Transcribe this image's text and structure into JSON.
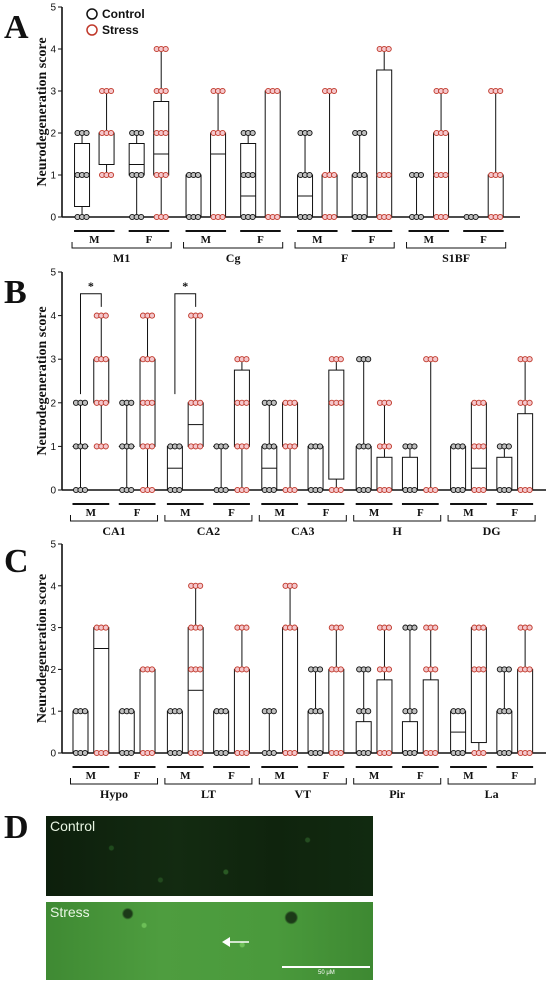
{
  "figure": {
    "panels": [
      {
        "letter": "A"
      },
      {
        "letter": "B"
      },
      {
        "letter": "C"
      },
      {
        "letter": "D"
      }
    ],
    "legend": [
      {
        "label": "Control",
        "color": "#111111"
      },
      {
        "label": "Stress",
        "color": "#c0392b"
      }
    ],
    "sex_labels": [
      "M",
      "F"
    ],
    "micrographs": {
      "control_label": "Control",
      "stress_label": "Stress",
      "scale_label": "50 μM"
    }
  },
  "chart_data": [
    {
      "type": "box",
      "panel": "A",
      "ylabel": "Neurodegeneration score",
      "ylim": [
        0,
        5
      ],
      "yticks": [
        0,
        1,
        2,
        3,
        4,
        5
      ],
      "series": [
        "Control",
        "Stress"
      ],
      "regions": [
        {
          "name": "M1",
          "groups": [
            {
              "sex": "M",
              "group": "Control",
              "min": 0,
              "q1": 0.25,
              "median": 1,
              "q3": 1.75,
              "max": 2
            },
            {
              "sex": "M",
              "group": "Stress",
              "min": 1,
              "q1": 1.25,
              "median": 2,
              "q3": 2,
              "max": 3
            },
            {
              "sex": "F",
              "group": "Control",
              "min": 0,
              "q1": 1,
              "median": 1.25,
              "q3": 1.75,
              "max": 2
            },
            {
              "sex": "F",
              "group": "Stress",
              "min": 0,
              "q1": 1,
              "median": 1.5,
              "q3": 2.75,
              "max": 4
            }
          ]
        },
        {
          "name": "Cg",
          "groups": [
            {
              "sex": "M",
              "group": "Control",
              "min": 0,
              "q1": 0,
              "median": 0,
              "q3": 1,
              "max": 1
            },
            {
              "sex": "M",
              "group": "Stress",
              "min": 0,
              "q1": 0,
              "median": 1.5,
              "q3": 2,
              "max": 3
            },
            {
              "sex": "F",
              "group": "Control",
              "min": 0,
              "q1": 0,
              "median": 0.5,
              "q3": 1.75,
              "max": 2
            },
            {
              "sex": "F",
              "group": "Stress",
              "min": 0,
              "q1": 0,
              "median": 3,
              "q3": 3,
              "max": 3
            }
          ]
        },
        {
          "name": "F",
          "groups": [
            {
              "sex": "M",
              "group": "Control",
              "min": 0,
              "q1": 0,
              "median": 0.5,
              "q3": 1,
              "max": 2
            },
            {
              "sex": "M",
              "group": "Stress",
              "min": 0,
              "q1": 0,
              "median": 0,
              "q3": 1,
              "max": 3
            },
            {
              "sex": "F",
              "group": "Control",
              "min": 0,
              "q1": 0,
              "median": 0,
              "q3": 1,
              "max": 2
            },
            {
              "sex": "F",
              "group": "Stress",
              "min": 0,
              "q1": 0,
              "median": 1,
              "q3": 3.5,
              "max": 4
            }
          ]
        },
        {
          "name": "S1BF",
          "groups": [
            {
              "sex": "M",
              "group": "Control",
              "min": 0,
              "q1": 0,
              "median": 0,
              "q3": 0,
              "max": 1
            },
            {
              "sex": "M",
              "group": "Stress",
              "min": 0,
              "q1": 0,
              "median": 1,
              "q3": 2,
              "max": 3
            },
            {
              "sex": "F",
              "group": "Control",
              "min": 0,
              "q1": 0,
              "median": 0,
              "q3": 0,
              "max": 0
            },
            {
              "sex": "F",
              "group": "Stress",
              "min": 0,
              "q1": 0,
              "median": 0,
              "q3": 1,
              "max": 3
            }
          ]
        }
      ],
      "significance": []
    },
    {
      "type": "box",
      "panel": "B",
      "ylabel": "Neurodegeneration score",
      "ylim": [
        0,
        5
      ],
      "yticks": [
        0,
        1,
        2,
        3,
        4,
        5
      ],
      "series": [
        "Control",
        "Stress"
      ],
      "regions": [
        {
          "name": "CA1",
          "groups": [
            {
              "sex": "M",
              "group": "Control",
              "min": 0,
              "q1": 1,
              "median": 1,
              "q3": 1,
              "max": 2
            },
            {
              "sex": "M",
              "group": "Stress",
              "min": 1,
              "q1": 2,
              "median": 2,
              "q3": 3,
              "max": 4
            },
            {
              "sex": "F",
              "group": "Control",
              "min": 0,
              "q1": 1,
              "median": 1,
              "q3": 1,
              "max": 2
            },
            {
              "sex": "F",
              "group": "Stress",
              "min": 0,
              "q1": 1,
              "median": 2,
              "q3": 3,
              "max": 4
            }
          ]
        },
        {
          "name": "CA2",
          "groups": [
            {
              "sex": "M",
              "group": "Control",
              "min": 0,
              "q1": 0,
              "median": 0.5,
              "q3": 1,
              "max": 1
            },
            {
              "sex": "M",
              "group": "Stress",
              "min": 1,
              "q1": 1,
              "median": 1.5,
              "q3": 2,
              "max": 4
            },
            {
              "sex": "F",
              "group": "Control",
              "min": 0,
              "q1": 1,
              "median": 1,
              "q3": 1,
              "max": 1
            },
            {
              "sex": "F",
              "group": "Stress",
              "min": 0,
              "q1": 1,
              "median": 2,
              "q3": 2.75,
              "max": 3
            }
          ]
        },
        {
          "name": "CA3",
          "groups": [
            {
              "sex": "M",
              "group": "Control",
              "min": 0,
              "q1": 0,
              "median": 0.5,
              "q3": 1,
              "max": 2
            },
            {
              "sex": "M",
              "group": "Stress",
              "min": 0,
              "q1": 1,
              "median": 2,
              "q3": 2,
              "max": 2
            },
            {
              "sex": "F",
              "group": "Control",
              "min": 0,
              "q1": 0,
              "median": 1,
              "q3": 1,
              "max": 1
            },
            {
              "sex": "F",
              "group": "Stress",
              "min": 0,
              "q1": 0.25,
              "median": 2,
              "q3": 2.75,
              "max": 3
            }
          ]
        },
        {
          "name": "H",
          "groups": [
            {
              "sex": "M",
              "group": "Control",
              "min": 0,
              "q1": 0,
              "median": 0,
              "q3": 1,
              "max": 3
            },
            {
              "sex": "M",
              "group": "Stress",
              "min": 0,
              "q1": 0,
              "median": 0,
              "q3": 0.75,
              "max": 2
            },
            {
              "sex": "F",
              "group": "Control",
              "min": 0,
              "q1": 0,
              "median": 0,
              "q3": 0.75,
              "max": 1
            },
            {
              "sex": "F",
              "group": "Stress",
              "min": 0,
              "q1": 0,
              "median": 0,
              "q3": 0,
              "max": 3
            }
          ]
        },
        {
          "name": "DG",
          "groups": [
            {
              "sex": "M",
              "group": "Control",
              "min": 0,
              "q1": 0,
              "median": 0,
              "q3": 1,
              "max": 1
            },
            {
              "sex": "M",
              "group": "Stress",
              "min": 0,
              "q1": 0,
              "median": 0.5,
              "q3": 2,
              "max": 2
            },
            {
              "sex": "F",
              "group": "Control",
              "min": 0,
              "q1": 0,
              "median": 0,
              "q3": 0.75,
              "max": 1
            },
            {
              "sex": "F",
              "group": "Stress",
              "min": 0,
              "q1": 0,
              "median": 0,
              "q3": 1.75,
              "max": 3
            }
          ]
        }
      ],
      "significance": [
        {
          "region": "CA1",
          "sex": "M",
          "label": "*"
        },
        {
          "region": "CA2",
          "sex": "M",
          "label": "*"
        }
      ]
    },
    {
      "type": "box",
      "panel": "C",
      "ylabel": "Neurodegeneration score",
      "ylim": [
        0,
        5
      ],
      "yticks": [
        0,
        1,
        2,
        3,
        4,
        5
      ],
      "series": [
        "Control",
        "Stress"
      ],
      "regions": [
        {
          "name": "Hypo",
          "groups": [
            {
              "sex": "M",
              "group": "Control",
              "min": 0,
              "q1": 0,
              "median": 0,
              "q3": 1,
              "max": 1
            },
            {
              "sex": "M",
              "group": "Stress",
              "min": 0,
              "q1": 0,
              "median": 2.5,
              "q3": 3,
              "max": 3
            },
            {
              "sex": "F",
              "group": "Control",
              "min": 0,
              "q1": 0,
              "median": 0,
              "q3": 1,
              "max": 1
            },
            {
              "sex": "F",
              "group": "Stress",
              "min": 0,
              "q1": 0,
              "median": 0,
              "q3": 2,
              "max": 2
            }
          ]
        },
        {
          "name": "LT",
          "groups": [
            {
              "sex": "M",
              "group": "Control",
              "min": 0,
              "q1": 0,
              "median": 0,
              "q3": 1,
              "max": 1
            },
            {
              "sex": "M",
              "group": "Stress",
              "min": 0,
              "q1": 0,
              "median": 1.5,
              "q3": 3,
              "max": 4
            },
            {
              "sex": "F",
              "group": "Control",
              "min": 0,
              "q1": 0,
              "median": 0,
              "q3": 1,
              "max": 1
            },
            {
              "sex": "F",
              "group": "Stress",
              "min": 0,
              "q1": 0,
              "median": 0,
              "q3": 2,
              "max": 3
            }
          ]
        },
        {
          "name": "VT",
          "groups": [
            {
              "sex": "M",
              "group": "Control",
              "min": 0,
              "q1": 0,
              "median": 0,
              "q3": 0,
              "max": 1
            },
            {
              "sex": "M",
              "group": "Stress",
              "min": 0,
              "q1": 0,
              "median": 0,
              "q3": 3,
              "max": 4
            },
            {
              "sex": "F",
              "group": "Control",
              "min": 0,
              "q1": 0,
              "median": 0,
              "q3": 1,
              "max": 2
            },
            {
              "sex": "F",
              "group": "Stress",
              "min": 0,
              "q1": 0,
              "median": 0,
              "q3": 2,
              "max": 3
            }
          ]
        },
        {
          "name": "Pir",
          "groups": [
            {
              "sex": "M",
              "group": "Control",
              "min": 0,
              "q1": 0,
              "median": 0,
              "q3": 0.75,
              "max": 2
            },
            {
              "sex": "M",
              "group": "Stress",
              "min": 0,
              "q1": 0,
              "median": 0,
              "q3": 1.75,
              "max": 3
            },
            {
              "sex": "F",
              "group": "Control",
              "min": 0,
              "q1": 0,
              "median": 0,
              "q3": 0.75,
              "max": 3
            },
            {
              "sex": "F",
              "group": "Stress",
              "min": 0,
              "q1": 0,
              "median": 0,
              "q3": 1.75,
              "max": 3
            }
          ]
        },
        {
          "name": "La",
          "groups": [
            {
              "sex": "M",
              "group": "Control",
              "min": 0,
              "q1": 0,
              "median": 0.5,
              "q3": 1,
              "max": 1
            },
            {
              "sex": "M",
              "group": "Stress",
              "min": 0,
              "q1": 0.25,
              "median": 2,
              "q3": 3,
              "max": 3
            },
            {
              "sex": "F",
              "group": "Control",
              "min": 0,
              "q1": 0,
              "median": 0,
              "q3": 1,
              "max": 2
            },
            {
              "sex": "F",
              "group": "Stress",
              "min": 0,
              "q1": 0,
              "median": 0,
              "q3": 2,
              "max": 3
            }
          ]
        }
      ],
      "significance": []
    }
  ]
}
